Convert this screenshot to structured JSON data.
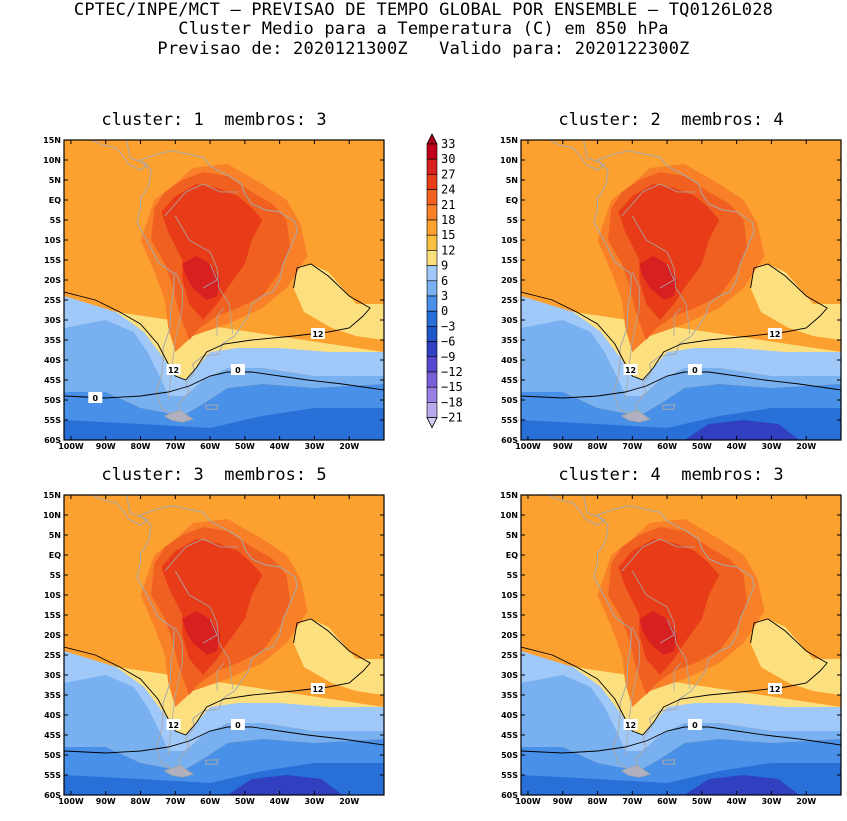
{
  "header": {
    "line1": "CPTEC/INPE/MCT – PREVISAO DE TEMPO GLOBAL POR ENSEMBLE – TQ0126L028",
    "line2": "Cluster Medio para a Temperatura (C) em 850 hPa",
    "line3": "Previsao de: 2020121300Z   Valido para: 2020122300Z"
  },
  "panels": [
    {
      "title": "cluster: 1  membros: 3",
      "contour_labels": [
        "12",
        "12",
        "0",
        "0"
      ]
    },
    {
      "title": "cluster: 2  membros: 4",
      "contour_labels": [
        "12",
        "12",
        "0"
      ]
    },
    {
      "title": "cluster: 3  membros: 5",
      "contour_labels": [
        "12",
        "12",
        "0"
      ]
    },
    {
      "title": "cluster: 4  membros: 3",
      "contour_labels": [
        "12",
        "12",
        "0"
      ]
    }
  ],
  "axes": {
    "lat_ticks": [
      "15N",
      "10N",
      "5N",
      "EQ",
      "5S",
      "10S",
      "15S",
      "20S",
      "25S",
      "30S",
      "35S",
      "40S",
      "45S",
      "50S",
      "55S",
      "60S"
    ],
    "lon_ticks": [
      "100W",
      "90W",
      "80W",
      "70W",
      "60W",
      "50W",
      "40W",
      "30W",
      "20W"
    ]
  },
  "colorbar": {
    "labels": [
      "33",
      "30",
      "27",
      "24",
      "21",
      "18",
      "15",
      "12",
      "9",
      "6",
      "3",
      "0",
      "−3",
      "−6",
      "−9",
      "−12",
      "−15",
      "−18",
      "−21"
    ],
    "colors": {
      "above_33": "#a8001a",
      "30_33": "#c00018",
      "27_30": "#d82020",
      "24_27": "#e83c18",
      "21_24": "#f06020",
      "18_21": "#f88028",
      "15_18": "#fca030",
      "12_15": "#fcc040",
      "9_12": "#fce080",
      "6_9": "#a0c8f8",
      "3_6": "#78b0f0",
      "0_3": "#4890e8",
      "m3_0": "#2870d8",
      "m6_m3": "#2058c8",
      "m9_m6": "#3040c0",
      "m12_m9": "#5848d0",
      "m15_m12": "#7860d8",
      "m18_m15": "#9880e0",
      "m21_m18": "#b8a8ec",
      "below_m21": "#d8d0f4"
    }
  }
}
